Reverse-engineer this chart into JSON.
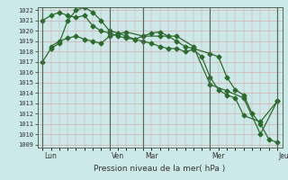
{
  "xlabel": "Pression niveau de la mer( hPa )",
  "ylim": [
    1009,
    1022
  ],
  "yticks": [
    1009,
    1010,
    1011,
    1012,
    1013,
    1014,
    1015,
    1016,
    1017,
    1018,
    1019,
    1020,
    1021,
    1022
  ],
  "xtick_labels": [
    "Lun",
    "",
    "Ven",
    "Mar",
    "",
    "Mer",
    "",
    "Jeu"
  ],
  "xtick_pos": [
    0,
    1,
    2,
    3,
    4,
    5,
    6,
    7
  ],
  "vline_pos": [
    0,
    2,
    3,
    5,
    7
  ],
  "vline_labels": [
    "Lun",
    "Ven",
    "Mar",
    "Mer",
    "Jeu"
  ],
  "bg_color": "#cce8e8",
  "grid_color": "#d4a0a0",
  "line_color": "#2d6a2d",
  "line1_x": [
    0.0,
    0.25,
    0.5,
    0.75,
    1.0,
    1.25,
    1.5,
    1.75,
    2.0,
    2.25,
    2.5,
    2.75,
    3.0,
    3.25,
    3.5,
    3.75,
    4.0,
    4.25,
    4.5,
    4.75,
    5.0,
    5.25,
    5.5,
    5.75,
    6.0,
    6.5,
    7.0
  ],
  "line1_y": [
    1017.0,
    1018.3,
    1018.8,
    1021.0,
    1022.0,
    1022.3,
    1021.8,
    1021.0,
    1020.0,
    1019.8,
    1019.5,
    1019.2,
    1019.0,
    1018.8,
    1018.5,
    1018.3,
    1018.3,
    1018.0,
    1018.2,
    1017.5,
    1015.5,
    1014.3,
    1013.8,
    1013.5,
    1011.8,
    1011.2,
    1013.2
  ],
  "line2_x": [
    0.0,
    0.25,
    0.5,
    0.75,
    1.0,
    1.25,
    1.5,
    1.75,
    2.0,
    2.25,
    2.5,
    2.75,
    3.0,
    3.25,
    3.5,
    3.75,
    4.0,
    4.25,
    4.5,
    5.0,
    5.25,
    5.5,
    5.75,
    6.0,
    6.25,
    6.5,
    6.75,
    7.0
  ],
  "line2_y": [
    1021.0,
    1021.5,
    1021.8,
    1021.5,
    1021.3,
    1021.5,
    1020.5,
    1020.0,
    1019.8,
    1019.5,
    1019.3,
    1019.2,
    1019.5,
    1019.8,
    1019.9,
    1019.5,
    1019.0,
    1018.5,
    1018.3,
    1017.8,
    1017.5,
    1015.5,
    1014.3,
    1013.8,
    1012.0,
    1011.0,
    1009.5,
    1009.2
  ],
  "line3_x": [
    0.25,
    0.5,
    0.75,
    1.0,
    1.25,
    1.5,
    1.75,
    2.0,
    2.5,
    3.0,
    3.5,
    4.0,
    4.5,
    5.0,
    5.5,
    6.0,
    6.5,
    7.0
  ],
  "line3_y": [
    1018.5,
    1019.0,
    1019.3,
    1019.5,
    1019.2,
    1019.0,
    1018.8,
    1019.5,
    1019.9,
    1019.5,
    1019.5,
    1019.5,
    1018.5,
    1014.8,
    1014.2,
    1013.5,
    1010.0,
    1013.2
  ]
}
